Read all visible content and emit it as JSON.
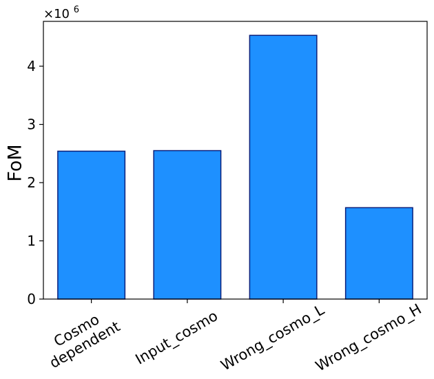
{
  "chart_data": {
    "type": "bar",
    "title": "",
    "xlabel": "",
    "ylabel": "FoM",
    "y_scale_label": "×10",
    "y_scale_exponent": "6",
    "categories": [
      [
        "Cosmo",
        "dependent"
      ],
      [
        "Input_cosmo"
      ],
      [
        "Wrong_cosmo_L"
      ],
      [
        "Wrong_cosmo_H"
      ]
    ],
    "values": [
      2.54,
      2.55,
      4.53,
      1.57
    ],
    "ylim": [
      0,
      4.77
    ],
    "yticks": [
      0,
      1,
      2,
      3,
      4
    ],
    "grid": false,
    "bar_color": "#1e90ff",
    "bar_edge_color": "#0a1f7a"
  }
}
